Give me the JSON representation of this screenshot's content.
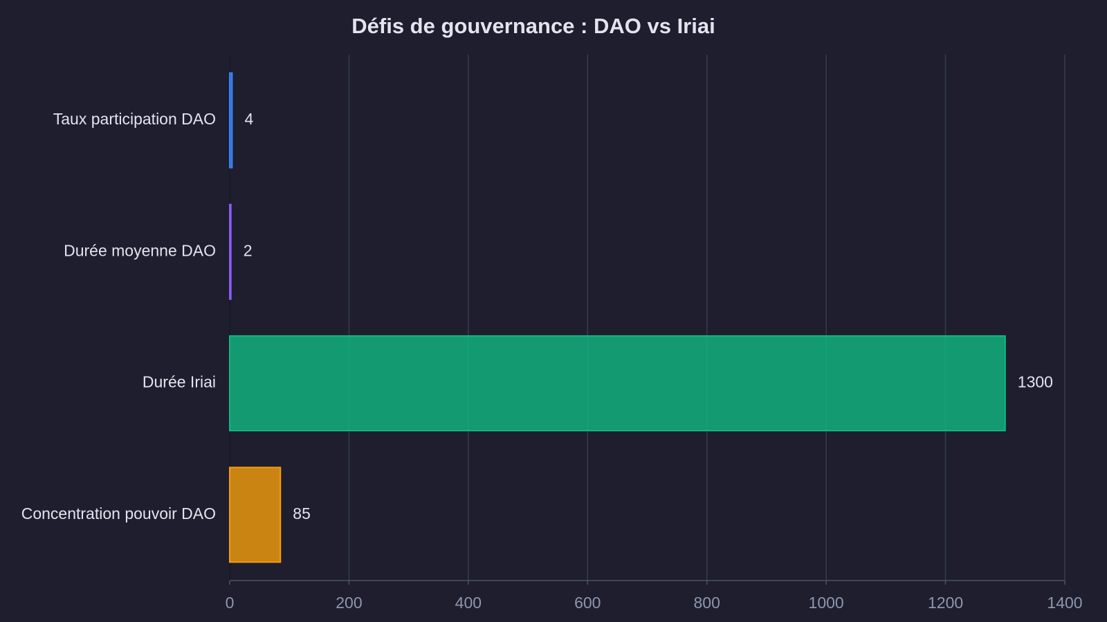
{
  "chart_data": {
    "type": "barh",
    "title": "Défis de gouvernance : DAO vs Iriai",
    "categories": [
      "Taux participation DAO",
      "Durée moyenne DAO",
      "Durée Iriai",
      "Concentration pouvoir DAO"
    ],
    "values": [
      4,
      2,
      1300,
      85
    ],
    "colors": [
      "#3b82f6",
      "#8b5cf6",
      "#10b981",
      "#f59e0b"
    ],
    "xlim": [
      0,
      1400
    ],
    "xticks": [
      0,
      200,
      400,
      600,
      800,
      1000,
      1200,
      1400
    ],
    "grid": true
  }
}
